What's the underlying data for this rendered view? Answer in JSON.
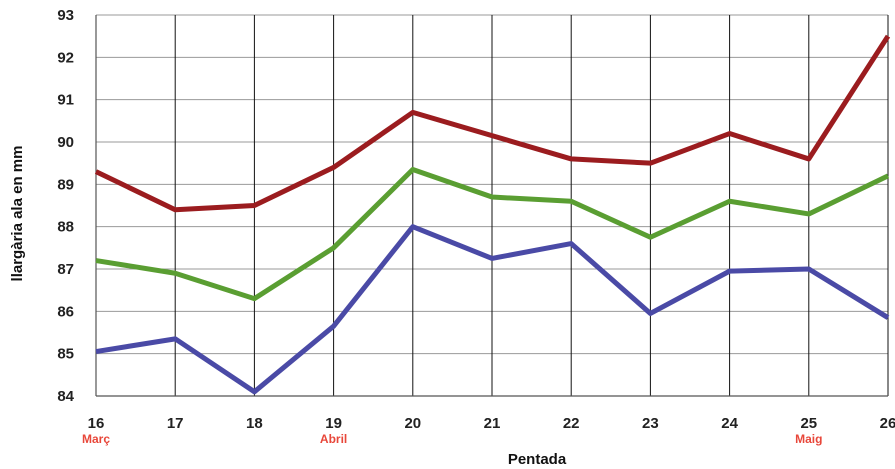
{
  "chart_data": {
    "type": "line",
    "title": "",
    "xlabel": "Pentada",
    "ylabel": "llargària ala en mm",
    "x": [
      16,
      17,
      18,
      19,
      20,
      21,
      22,
      23,
      24,
      25,
      26
    ],
    "ylim": [
      84,
      93
    ],
    "yticks": [
      84,
      85,
      86,
      87,
      88,
      89,
      90,
      91,
      92,
      93
    ],
    "grid": true,
    "legend": "none",
    "month_labels": [
      {
        "x": 16,
        "label": "Març"
      },
      {
        "x": 19,
        "label": "Abril"
      },
      {
        "x": 25,
        "label": "Maig"
      }
    ],
    "series": [
      {
        "color": "#9b1c1f",
        "values": [
          89.3,
          88.4,
          88.5,
          89.4,
          90.7,
          90.15,
          89.6,
          89.5,
          90.2,
          89.6,
          92.5
        ]
      },
      {
        "color": "#5a9e32",
        "values": [
          87.2,
          86.9,
          86.3,
          87.5,
          89.35,
          88.7,
          88.6,
          87.75,
          88.6,
          88.3,
          89.2
        ]
      },
      {
        "color": "#4a4aa6",
        "values": [
          85.05,
          85.35,
          84.1,
          85.65,
          88.0,
          87.25,
          87.6,
          85.95,
          86.95,
          87.0,
          85.85
        ]
      }
    ]
  },
  "colors": {
    "month_label": "#e8473a",
    "grid": "#999999",
    "axis": "#555555"
  }
}
